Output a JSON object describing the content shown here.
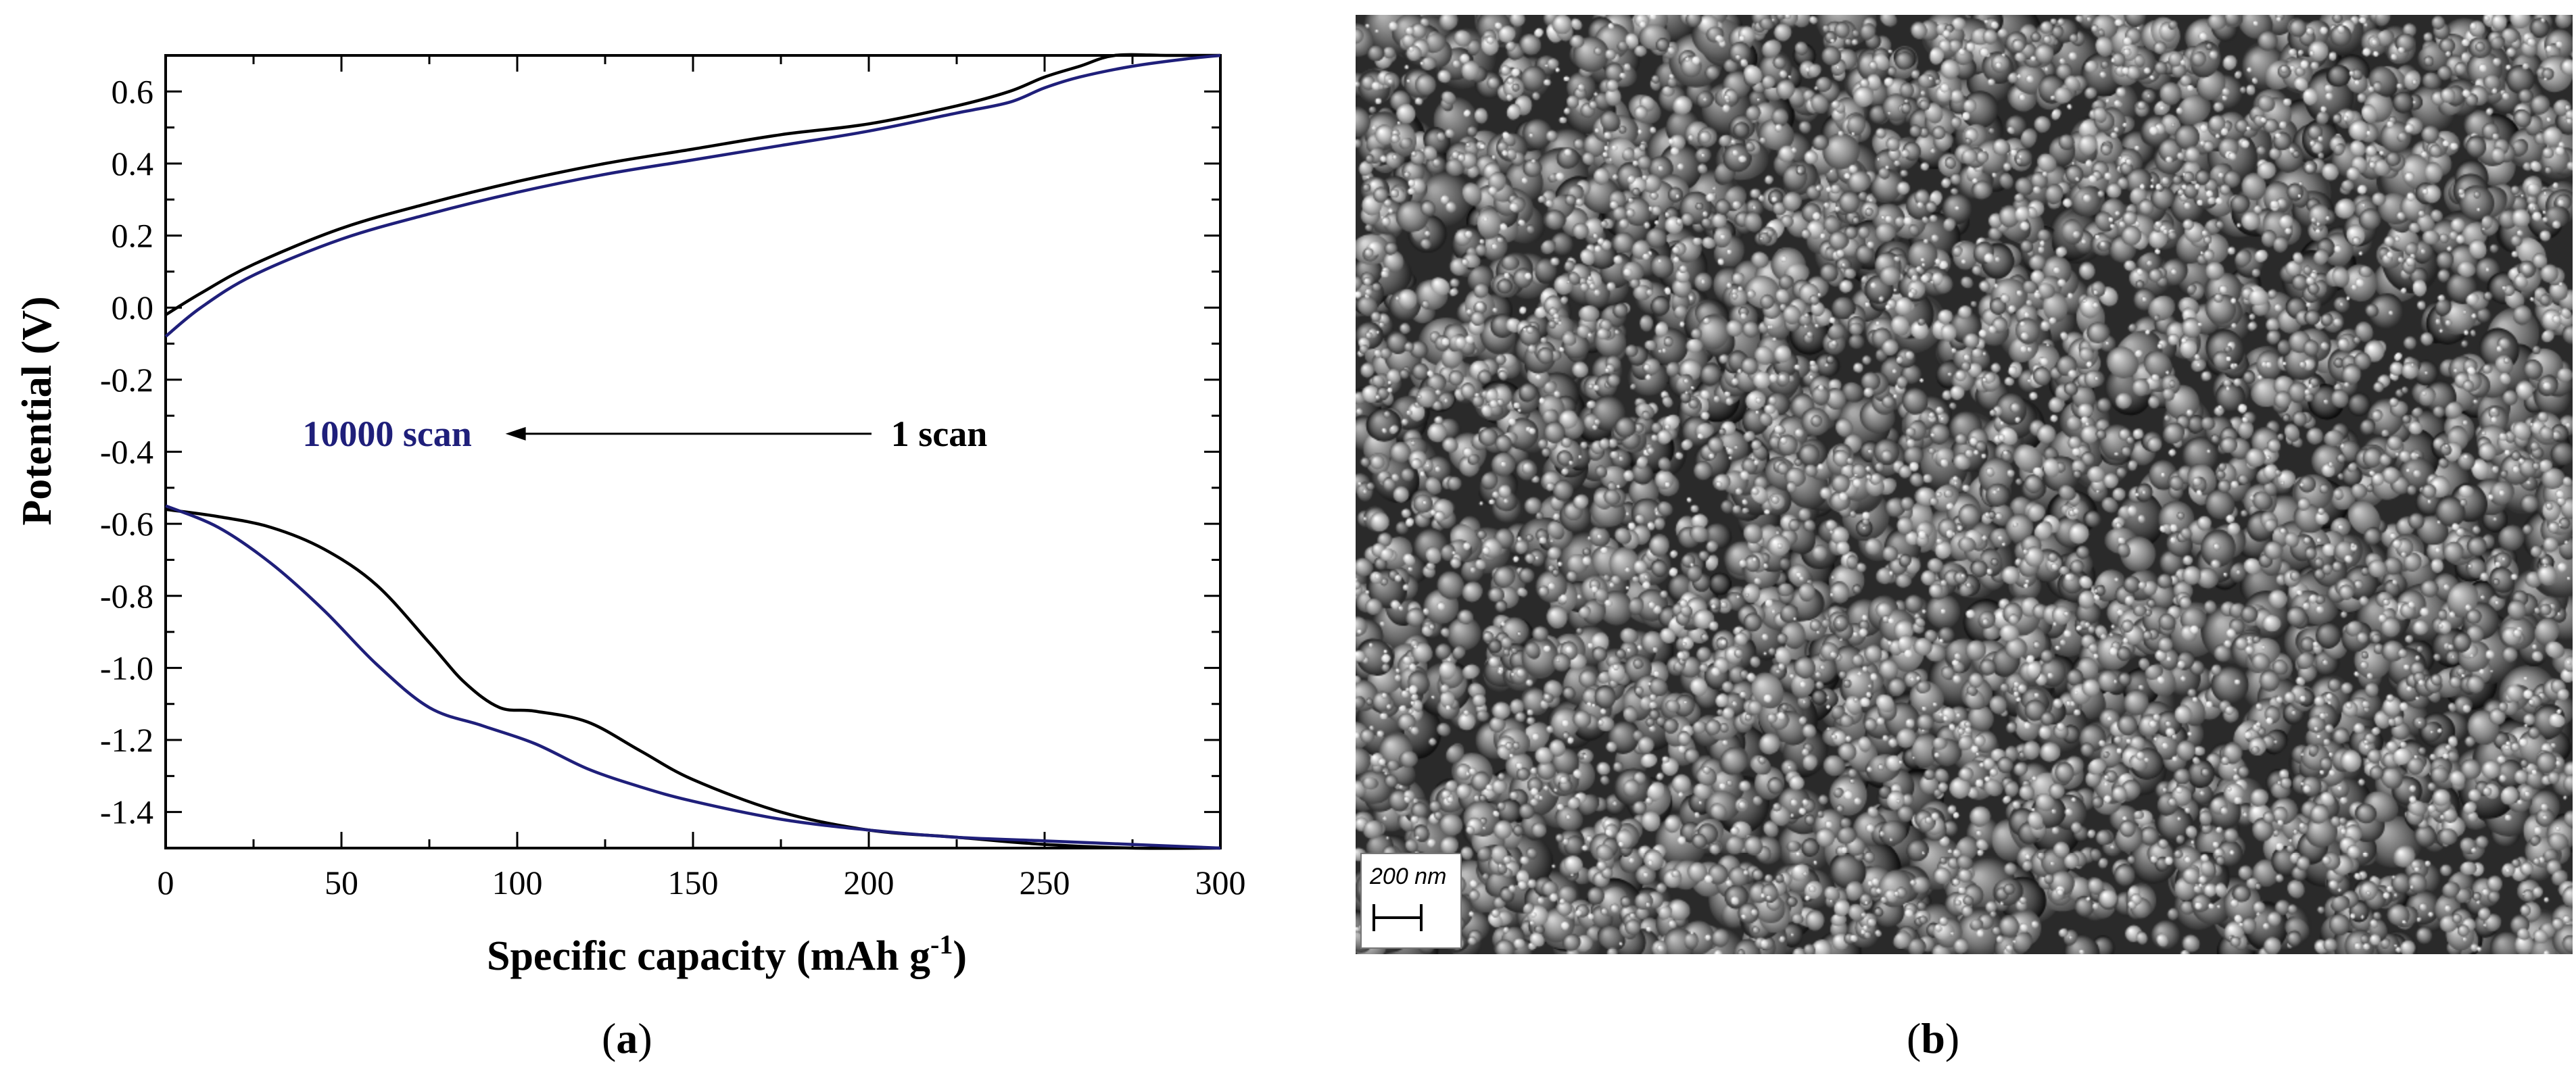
{
  "chart_data": {
    "type": "line",
    "xlabel": "Specific  capacity (mAh g",
    "xlabel_sup": "-1",
    "xlabel_close": ")",
    "ylabel": "Potential (V)",
    "xlim": [
      0,
      300
    ],
    "ylim": [
      -1.5,
      0.7
    ],
    "x_ticks": [
      0,
      50,
      100,
      150,
      200,
      250,
      300
    ],
    "y_ticks": [
      -1.4,
      -1.2,
      -1.0,
      -0.8,
      -0.6,
      -0.4,
      -0.2,
      0.0,
      0.2,
      0.4,
      0.6
    ],
    "x_tick_labels": [
      "0",
      "50",
      "100",
      "150",
      "200",
      "250",
      "300"
    ],
    "y_tick_labels": [
      "-1.4",
      "-1.2",
      "-1.0",
      "-0.8",
      "-0.6",
      "-0.4",
      "-0.2",
      "0.0",
      "0.2",
      "0.4",
      "0.6"
    ],
    "grid": false,
    "annotations": [
      {
        "text": "10000 scan",
        "color": "#1f1f7a",
        "x": 63,
        "y": -0.35
      },
      {
        "text": "1 scan",
        "color": "#000000",
        "x": 220,
        "y": -0.35
      }
    ],
    "series": [
      {
        "color": "#000000",
        "charge_curve": {
          "x": [
            0,
            10,
            25,
            50,
            75,
            100,
            125,
            150,
            175,
            200,
            225,
            240,
            250,
            260,
            270,
            285,
            300
          ],
          "y": [
            -0.02,
            0.04,
            0.12,
            0.22,
            0.29,
            0.35,
            0.4,
            0.44,
            0.48,
            0.51,
            0.56,
            0.6,
            0.64,
            0.67,
            0.7,
            0.7,
            0.7
          ]
        },
        "discharge_curve": {
          "x": [
            0,
            15,
            30,
            45,
            60,
            75,
            85,
            95,
            105,
            120,
            135,
            150,
            175,
            200,
            225,
            250,
            275,
            300
          ],
          "y": [
            -0.56,
            -0.58,
            -0.61,
            -0.67,
            -0.77,
            -0.93,
            -1.04,
            -1.11,
            -1.12,
            -1.15,
            -1.23,
            -1.31,
            -1.4,
            -1.45,
            -1.47,
            -1.49,
            -1.5,
            -1.5
          ]
        }
      },
      {
        "color": "#1f1f7a",
        "charge_curve": {
          "x": [
            0,
            10,
            25,
            50,
            75,
            100,
            125,
            150,
            175,
            200,
            225,
            240,
            250,
            260,
            275,
            290,
            300
          ],
          "y": [
            -0.08,
            0.0,
            0.09,
            0.19,
            0.26,
            0.32,
            0.37,
            0.41,
            0.45,
            0.49,
            0.54,
            0.57,
            0.61,
            0.64,
            0.67,
            0.69,
            0.7
          ]
        },
        "discharge_curve": {
          "x": [
            0,
            15,
            30,
            45,
            60,
            75,
            90,
            105,
            120,
            135,
            150,
            175,
            200,
            225,
            250,
            275,
            300
          ],
          "y": [
            -0.55,
            -0.61,
            -0.71,
            -0.84,
            -0.99,
            -1.11,
            -1.16,
            -1.21,
            -1.28,
            -1.33,
            -1.37,
            -1.42,
            -1.45,
            -1.47,
            -1.48,
            -1.49,
            -1.5
          ]
        }
      }
    ]
  },
  "sem_image": {
    "scale_label": "200 nm"
  },
  "panels": {
    "label_a_open": "(",
    "label_a_letter": "a",
    "label_a_close": ")",
    "label_b_open": "(",
    "label_b_letter": "b",
    "label_b_close": ")"
  }
}
